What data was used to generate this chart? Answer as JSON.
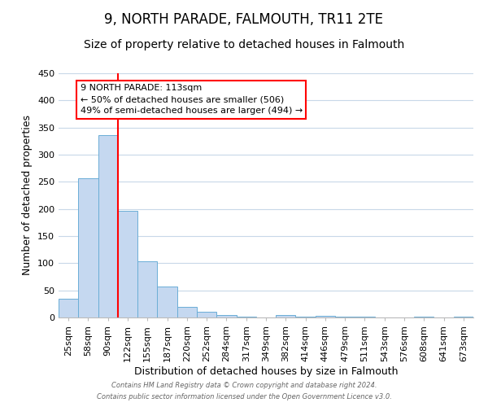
{
  "title": "9, NORTH PARADE, FALMOUTH, TR11 2TE",
  "subtitle": "Size of property relative to detached houses in Falmouth",
  "xlabel": "Distribution of detached houses by size in Falmouth",
  "ylabel": "Number of detached properties",
  "bar_labels": [
    "25sqm",
    "58sqm",
    "90sqm",
    "122sqm",
    "155sqm",
    "187sqm",
    "220sqm",
    "252sqm",
    "284sqm",
    "317sqm",
    "349sqm",
    "382sqm",
    "414sqm",
    "446sqm",
    "479sqm",
    "511sqm",
    "543sqm",
    "576sqm",
    "608sqm",
    "641sqm",
    "673sqm"
  ],
  "bar_heights": [
    35,
    256,
    336,
    196,
    104,
    57,
    20,
    10,
    5,
    1,
    0,
    5,
    1,
    3,
    1,
    1,
    0,
    0,
    1,
    0,
    1
  ],
  "bar_color": "#c5d8f0",
  "bar_edge_color": "#6baed6",
  "background_color": "#ffffff",
  "grid_color": "#c8d8e8",
  "red_line_index": 2.5,
  "annotation_text": "9 NORTH PARADE: 113sqm\n← 50% of detached houses are smaller (506)\n49% of semi-detached houses are larger (494) →",
  "footer1": "Contains HM Land Registry data © Crown copyright and database right 2024.",
  "footer2": "Contains public sector information licensed under the Open Government Licence v3.0.",
  "ylim": [
    0,
    450
  ],
  "yticks": [
    0,
    50,
    100,
    150,
    200,
    250,
    300,
    350,
    400,
    450
  ],
  "title_fontsize": 12,
  "subtitle_fontsize": 10,
  "tick_fontsize": 8,
  "label_fontsize": 9,
  "footer_fontsize": 6,
  "annotation_fontsize": 8
}
